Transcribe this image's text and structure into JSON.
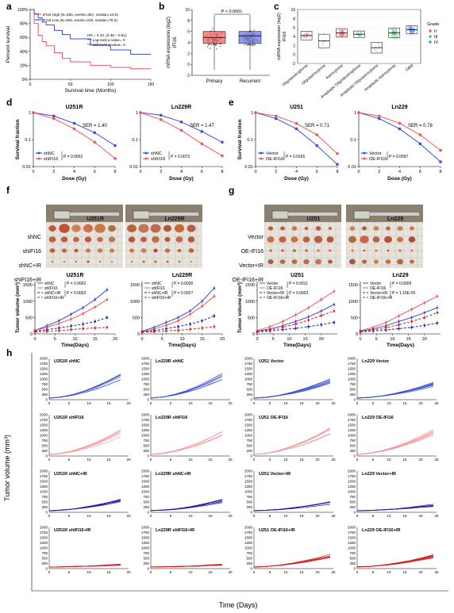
{
  "panel_labels": {
    "a": "a",
    "b": "b",
    "c": "c",
    "d": "d",
    "e": "e",
    "f": "f",
    "g": "g",
    "h": "h"
  },
  "panel_a": {
    "ylabel": "Percent survival",
    "xlabel": "Survival time (Months)",
    "legend": [
      "IFI16 High (N=490, events=367, median=19.5)",
      "IFI16 Low (N=493, events=229, median=78.3)"
    ],
    "stats": [
      "HR = 0.43, (0.36 – 0.51)",
      "*** Log-rank p value= 0",
      "*** Wilcoxon p value= 0"
    ],
    "yticks": [
      "0%",
      "20%",
      "40%",
      "60%",
      "80%",
      "100%"
    ],
    "xticks": [
      "0",
      "50",
      "100",
      "150"
    ]
  },
  "panel_b": {
    "ylabel": "mRNA expression (log2)",
    "ylabel2": "IFI16",
    "pval": "P < 0.0001",
    "categories": [
      "Primary",
      "Recurrent"
    ],
    "yticks": [
      "-2",
      "0",
      "2",
      "4",
      "6",
      "8",
      "10"
    ]
  },
  "panel_c": {
    "ylabel": "mRNA expression (log2)",
    "ylabel2": "IFI16",
    "categories": [
      "Oligodendroglioma",
      "Oligoastrocytoma",
      "Astrocytoma",
      "Anaplastic Oligodendroglioma",
      "Anaplastic Oligoastrocytoma",
      "Anaplastic Astrocytoma",
      "GBM"
    ],
    "yticks": [
      "-2",
      "0",
      "2",
      "4",
      "6",
      "8",
      "10"
    ],
    "legend_title": "Grade",
    "legend": [
      "II",
      "III",
      "IV"
    ]
  },
  "clono": {
    "ylabel": "Survival fraction",
    "xlabel": "Dose (Gy)",
    "yticks": [
      "1",
      "0.1",
      "0.01"
    ],
    "xticks": [
      "0",
      "2",
      "4",
      "6",
      "8"
    ],
    "plots": [
      {
        "title": "U251R",
        "ser": "SER = 1.40",
        "p": "P = 0.0002",
        "legend": [
          "shNC",
          "shIFI16"
        ]
      },
      {
        "title": "Ln229R",
        "ser": "SER = 1.47",
        "p": "P = 0.0072",
        "legend": [
          "shNC",
          "shIFI16"
        ]
      },
      {
        "title": "U251",
        "ser": "SER = 0.71",
        "p": "P = 0.0165",
        "legend": [
          "Vector",
          "OE-IFI16"
        ]
      },
      {
        "title": "Ln229",
        "ser": "SER = 0.78",
        "p": "P = 0.0097",
        "legend": [
          "Vector",
          "OE-IFI16"
        ]
      }
    ]
  },
  "photos": {
    "f_titles": [
      "U251R",
      "Ln229R"
    ],
    "g_titles": [
      "U251",
      "Ln229"
    ],
    "f_rows": [
      "shNC",
      "shIFI16",
      "shNC+IR",
      "shIFI16+IR"
    ],
    "g_rows": [
      "Vector",
      "OE-IFI16",
      "Vector+IR",
      "OE-IFI16+IR"
    ]
  },
  "tumor": {
    "ylabel": "Tumor volume (mm³)",
    "xlabel": "Time(Days)",
    "yticks": [
      "0",
      "500",
      "1000",
      "1500"
    ],
    "xticks": [
      "0",
      "5",
      "10",
      "15",
      "20"
    ],
    "plots": [
      {
        "title": "U251R",
        "legend": [
          "shNC",
          "shIFI16",
          "shNC+IR",
          "shIFI16+IR"
        ],
        "p1": "P = 0.0002",
        "p2": "P = 0.0003"
      },
      {
        "title": "Ln229R",
        "legend": [
          "shNC",
          "shIFI16",
          "shNC+IR",
          "shIFI16+IR"
        ],
        "p1": "P = 0.0036",
        "p2": "P = 0.0027"
      },
      {
        "title": "U251",
        "legend": [
          "Vector",
          "OE-IFI16",
          "Vector+IR",
          "OE-IFI16+IR"
        ],
        "p1": "P = 0.0011",
        "p2": "P = 0.0003"
      },
      {
        "title": "Ln229",
        "legend": [
          "Vector",
          "OE-IFI16",
          "Vector+IR",
          "OE-IFI16+IR"
        ],
        "p1": "P = 0.0009",
        "p2": "P = 1.16E-05"
      }
    ]
  },
  "panel_h": {
    "ylabel": "Tumor volume (mm³)",
    "xlabel": "Time (Days)",
    "yticks": [
      "0",
      "250",
      "500",
      "750",
      "1000",
      "1250",
      "1500",
      "1750",
      "2000"
    ],
    "xticks_short": [
      "0",
      "5",
      "10",
      "15",
      "20"
    ],
    "xticks_long": [
      "0",
      "5",
      "10",
      "15",
      "20",
      "25"
    ],
    "titles": [
      [
        "U251R shNC",
        "Ln229R shNC",
        "U251 Vector",
        "Ln229 Vector"
      ],
      [
        "U251R shIFI16",
        "Ln229R shIFI16",
        "U251 OE-IFI16",
        "Ln229 OE-IFI16"
      ],
      [
        "U251R shNC+IR",
        "Ln229R shNC+IR",
        "U251 Vector+IR",
        "Ln229 Vector+IR"
      ],
      [
        "U251R shIFI16+IR",
        "Ln229R shIFI16+IR",
        "U251 OE-IFI16+IR",
        "Ln229 OE-IFI16+IR"
      ]
    ],
    "final_volumes": [
      [
        1100,
        1150,
        900,
        800
      ],
      [
        1150,
        1150,
        1250,
        1250
      ],
      [
        550,
        550,
        480,
        350
      ],
      [
        200,
        200,
        650,
        650
      ]
    ]
  },
  "colors": {
    "blue": "#3a4fd6",
    "red": "#ee5a5a",
    "navy": "#1f1fa8",
    "darkred": "#d61b1b",
    "salmon": "#f29a9a",
    "lightblue": "#8a94e8"
  },
  "chart_data": [
    {
      "type": "line",
      "title": "",
      "xlabel": "Survival time (Months)",
      "ylabel": "Percent survival",
      "series": [
        {
          "name": "IFI16 High (N=490, events=367, median=19.5)",
          "x": [
            0,
            5,
            10,
            15,
            20,
            30,
            40,
            50,
            75,
            100,
            125,
            150
          ],
          "y": [
            100,
            80,
            63,
            54,
            48,
            38,
            30,
            25,
            20,
            17,
            15,
            15
          ]
        },
        {
          "name": "IFI16 Low (N=493, events=229, median=78.3)",
          "x": [
            0,
            5,
            10,
            15,
            20,
            30,
            40,
            50,
            75,
            100,
            125,
            150
          ],
          "y": [
            100,
            94,
            88,
            82,
            78,
            70,
            64,
            58,
            49,
            42,
            36,
            36
          ]
        }
      ],
      "xlim": [
        0,
        150
      ],
      "ylim": [
        0,
        100
      ]
    },
    {
      "type": "line",
      "title": "U251R",
      "xlabel": "Dose (Gy)",
      "ylabel": "Survival fraction",
      "x": [
        0,
        2,
        4,
        6,
        8
      ],
      "series": [
        {
          "name": "shNC",
          "y": [
            1,
            0.75,
            0.4,
            0.18,
            0.06
          ]
        },
        {
          "name": "shIFI16",
          "y": [
            1,
            0.6,
            0.25,
            0.08,
            0.02
          ]
        }
      ]
    },
    {
      "type": "line",
      "title": "Ln229R",
      "xlabel": "Dose (Gy)",
      "ylabel": "Survival fraction",
      "x": [
        0,
        2,
        4,
        6,
        8
      ],
      "series": [
        {
          "name": "shNC",
          "y": [
            1,
            0.8,
            0.45,
            0.2,
            0.08
          ]
        },
        {
          "name": "shIFI16",
          "y": [
            1,
            0.55,
            0.22,
            0.07,
            0.025
          ]
        }
      ]
    },
    {
      "type": "line",
      "title": "U251",
      "xlabel": "Dose (Gy)",
      "ylabel": "Survival fraction",
      "x": [
        0,
        2,
        4,
        6,
        8
      ],
      "series": [
        {
          "name": "Vector",
          "y": [
            1,
            0.6,
            0.25,
            0.06,
            0.012
          ]
        },
        {
          "name": "OE-IFI16",
          "y": [
            1,
            0.75,
            0.4,
            0.15,
            0.03
          ]
        }
      ]
    },
    {
      "type": "line",
      "title": "Ln229",
      "xlabel": "Dose (Gy)",
      "ylabel": "Survival fraction",
      "x": [
        0,
        2,
        4,
        6,
        8
      ],
      "series": [
        {
          "name": "Vector",
          "y": [
            1,
            0.6,
            0.25,
            0.07,
            0.015
          ]
        },
        {
          "name": "OE-IFI16",
          "y": [
            1,
            0.75,
            0.4,
            0.15,
            0.04
          ]
        }
      ]
    },
    {
      "type": "line",
      "title": "U251R",
      "xlabel": "Time(Days)",
      "ylabel": "Tumor volume (mm³)",
      "x": [
        0,
        3,
        6,
        9,
        12,
        15,
        18
      ],
      "series": [
        {
          "name": "shNC",
          "y": [
            100,
            250,
            400,
            600,
            800,
            1050,
            1350
          ]
        },
        {
          "name": "shIFI16",
          "y": [
            100,
            200,
            320,
            450,
            620,
            820,
            1050
          ]
        },
        {
          "name": "shNC+IR",
          "y": [
            80,
            130,
            180,
            240,
            300,
            380,
            500
          ]
        },
        {
          "name": "shIFI16+IR",
          "y": [
            60,
            80,
            100,
            130,
            160,
            180,
            200
          ]
        }
      ]
    },
    {
      "type": "line",
      "title": "Ln229R",
      "xlabel": "Time(Days)",
      "ylabel": "Tumor volume (mm³)",
      "x": [
        0,
        3,
        6,
        9,
        12,
        15,
        18
      ],
      "series": [
        {
          "name": "shNC",
          "y": [
            80,
            200,
            350,
            500,
            700,
            1000,
            1400
          ]
        },
        {
          "name": "shIFI16",
          "y": [
            60,
            150,
            260,
            400,
            600,
            850,
            1150
          ]
        },
        {
          "name": "shNC+IR",
          "y": [
            60,
            100,
            160,
            220,
            300,
            400,
            550
          ]
        },
        {
          "name": "shIFI16+IR",
          "y": [
            50,
            70,
            90,
            110,
            140,
            180,
            220
          ]
        }
      ]
    },
    {
      "type": "line",
      "title": "U251",
      "xlabel": "Time(Days)",
      "ylabel": "Tumor volume (mm³)",
      "x": [
        0,
        4,
        8,
        12,
        16,
        20,
        24
      ],
      "series": [
        {
          "name": "Vector",
          "y": [
            80,
            150,
            250,
            380,
            520,
            700,
            900
          ]
        },
        {
          "name": "OE-IFI16",
          "y": [
            100,
            220,
            380,
            580,
            800,
            1050,
            1300
          ]
        },
        {
          "name": "Vector+IR",
          "y": [
            60,
            90,
            130,
            170,
            220,
            280,
            350
          ]
        },
        {
          "name": "OE-IFI16+IR",
          "y": [
            70,
            120,
            200,
            300,
            420,
            560,
            700
          ]
        }
      ]
    },
    {
      "type": "line",
      "title": "Ln229",
      "xlabel": "Time(Days)",
      "ylabel": "Tumor volume (mm³)",
      "x": [
        0,
        4,
        8,
        12,
        16,
        20,
        24
      ],
      "series": [
        {
          "name": "Vector",
          "y": [
            80,
            150,
            250,
            380,
            500,
            650,
            800
          ]
        },
        {
          "name": "OE-IFI16",
          "y": [
            100,
            200,
            350,
            550,
            750,
            950,
            1150
          ]
        },
        {
          "name": "Vector+IR",
          "y": [
            60,
            90,
            120,
            160,
            200,
            260,
            330
          ]
        },
        {
          "name": "OE-IFI16+IR",
          "y": [
            70,
            120,
            190,
            280,
            380,
            500,
            650
          ]
        }
      ]
    }
  ]
}
